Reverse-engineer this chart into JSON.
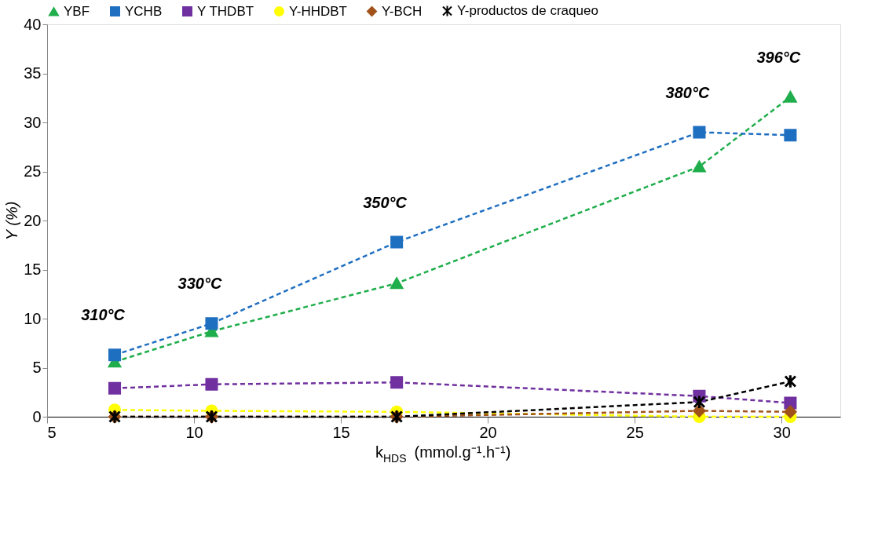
{
  "chart_data": {
    "type": "line",
    "xlabel": "k$_{HDS}$ (mmol.g⁻¹.h⁻¹)",
    "ylabel": "Y (%)",
    "x": [
      7.3,
      10.6,
      16.9,
      27.2,
      30.3
    ],
    "xlim": [
      5,
      32
    ],
    "xticks": [
      5,
      10,
      15,
      20,
      25,
      30
    ],
    "ylim": [
      0,
      40
    ],
    "yticks": [
      0,
      5,
      10,
      15,
      20,
      25,
      30,
      35,
      40
    ],
    "grid": false,
    "legend": "top",
    "line_style": "dashed",
    "series": [
      {
        "name": "YBF",
        "color": "#1fae4b",
        "marker": "triangle",
        "values": [
          5.6,
          8.7,
          13.6,
          25.5,
          32.6
        ]
      },
      {
        "name": "YCHB",
        "color": "#1f6fc1",
        "marker": "square",
        "values": [
          6.3,
          9.5,
          17.8,
          29.0,
          28.7
        ]
      },
      {
        "name": "Y THDBT",
        "color": "#7030a0",
        "marker": "square",
        "values": [
          2.9,
          3.3,
          3.5,
          2.1,
          1.4
        ]
      },
      {
        "name": "Y-HHDBT",
        "color": "#ffff00",
        "marker": "circle",
        "values": [
          0.7,
          0.6,
          0.5,
          0.0,
          0.0
        ]
      },
      {
        "name": "Y-BCH",
        "color": "#a0521a",
        "marker": "diamond",
        "values": [
          0.0,
          0.0,
          0.0,
          0.6,
          0.5
        ]
      },
      {
        "name": "Y-productos de craqueo",
        "color": "#000000",
        "marker": "cross",
        "values": [
          0.0,
          0.0,
          0.0,
          1.5,
          3.6
        ]
      }
    ],
    "annotations": [
      {
        "text": "310°C",
        "x": 7.3,
        "y": 6.3
      },
      {
        "text": "330°C",
        "x": 10.6,
        "y": 9.5
      },
      {
        "text": "350°C",
        "x": 16.9,
        "y": 17.8
      },
      {
        "text": "380°C",
        "x": 27.2,
        "y": 29.0
      },
      {
        "text": "396°C",
        "x": 30.3,
        "y": 32.6
      }
    ]
  }
}
